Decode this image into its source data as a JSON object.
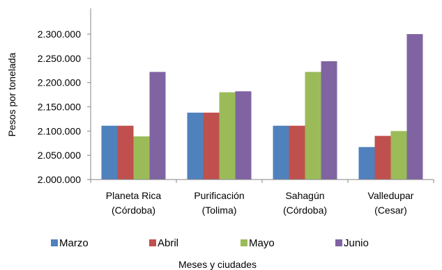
{
  "chart_data": {
    "type": "bar",
    "categories": [
      [
        "Planeta Rica",
        "(Córdoba)"
      ],
      [
        "Purificación",
        "(Tolima)"
      ],
      [
        "Sahagún",
        "(Córdoba)"
      ],
      [
        "Valledupar",
        "(Cesar)"
      ]
    ],
    "series": [
      {
        "name": "Marzo",
        "color": "#4F81BD",
        "values": [
          2111000,
          2138000,
          2111000,
          2067000
        ]
      },
      {
        "name": "Abril",
        "color": "#C0504D",
        "values": [
          2111000,
          2138000,
          2111000,
          2090000
        ]
      },
      {
        "name": "Mayo",
        "color": "#9BBB59",
        "values": [
          2089000,
          2180000,
          2222000,
          2100000
        ]
      },
      {
        "name": "Junio",
        "color": "#8064A2",
        "values": [
          2222000,
          2182000,
          2244000,
          2300000
        ]
      }
    ],
    "ylabel": "Pesos por tonelada",
    "xlabel": "Meses y ciudades",
    "ylim": [
      2000000,
      2300000
    ],
    "ytick_values": [
      2000000,
      2050000,
      2100000,
      2150000,
      2200000,
      2250000,
      2300000
    ],
    "ytick_labels": [
      "2.000.000",
      "2.050.000",
      "2.100.000",
      "2.150.000",
      "2.200.000",
      "2.250.000",
      "2.300.000"
    ],
    "grid": false,
    "legend_position": "bottom"
  }
}
